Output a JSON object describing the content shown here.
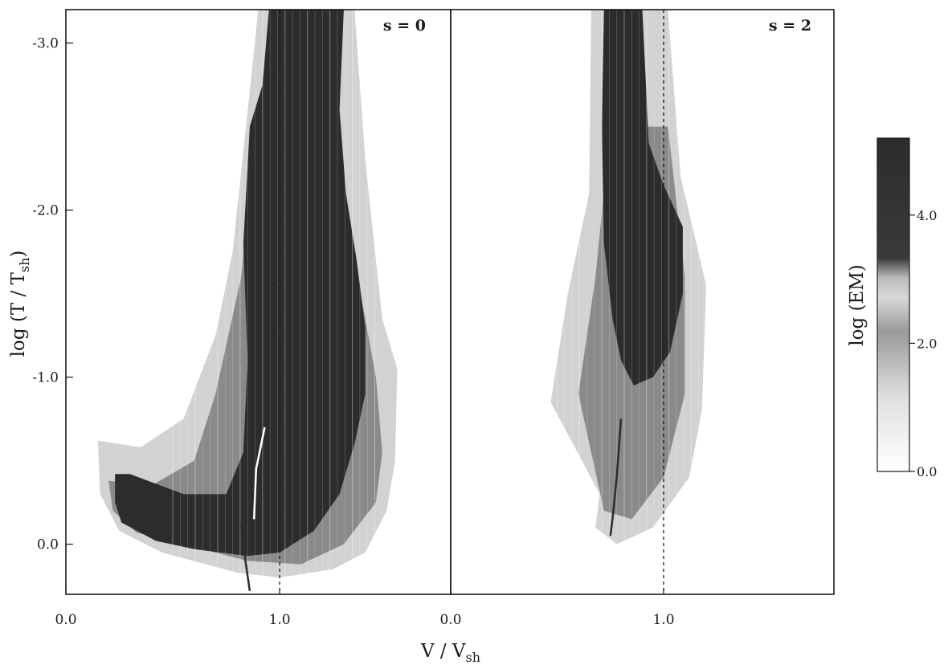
{
  "chart_data": {
    "type": "heatmap",
    "xlabel": "V / V",
    "xlabel_sub": "sh",
    "ylabel": "log (T / T",
    "ylabel_sub": "sh",
    "ylabel_close": ")",
    "panel_xlim": [
      0.0,
      1.8
    ],
    "ylim": [
      0.3,
      -3.2
    ],
    "y_ticks": [
      {
        "value": -3.0,
        "label": "-3.0"
      },
      {
        "value": -2.0,
        "label": "-2.0"
      },
      {
        "value": -1.0,
        "label": "-1.0"
      },
      {
        "value": 0.0,
        "label": "0.0"
      }
    ],
    "panels": [
      {
        "label": "s = 0",
        "x_ticks": [
          {
            "value": 0.0,
            "label": "0.0"
          },
          {
            "value": 1.0,
            "label": "1.0"
          }
        ],
        "reference_line_x": 1.0,
        "regions": [
          {
            "level": "light",
            "points": [
              [
                0.15,
                -0.62
              ],
              [
                0.35,
                -0.58
              ],
              [
                0.55,
                -0.75
              ],
              [
                0.7,
                -1.25
              ],
              [
                0.78,
                -1.75
              ],
              [
                0.9,
                -3.2
              ],
              [
                1.35,
                -3.2
              ],
              [
                1.4,
                -2.3
              ],
              [
                1.48,
                -1.35
              ],
              [
                1.55,
                -1.05
              ],
              [
                1.54,
                -0.5
              ],
              [
                1.5,
                -0.2
              ],
              [
                1.4,
                0.05
              ],
              [
                1.25,
                0.15
              ],
              [
                1.0,
                0.2
              ],
              [
                0.8,
                0.17
              ],
              [
                0.45,
                0.05
              ],
              [
                0.25,
                -0.08
              ],
              [
                0.16,
                -0.3
              ]
            ]
          },
          {
            "level": "medium",
            "points": [
              [
                0.2,
                -0.38
              ],
              [
                0.4,
                -0.35
              ],
              [
                0.6,
                -0.5
              ],
              [
                0.7,
                -0.9
              ],
              [
                0.82,
                -1.6
              ],
              [
                0.9,
                -2.6
              ],
              [
                1.2,
                -2.6
              ],
              [
                1.35,
                -1.7
              ],
              [
                1.45,
                -1.0
              ],
              [
                1.48,
                -0.55
              ],
              [
                1.45,
                -0.25
              ],
              [
                1.3,
                0.0
              ],
              [
                1.1,
                0.12
              ],
              [
                0.85,
                0.1
              ],
              [
                0.55,
                0.0
              ],
              [
                0.33,
                -0.07
              ],
              [
                0.22,
                -0.2
              ]
            ]
          },
          {
            "level": "dark",
            "points": [
              [
                0.23,
                -0.42
              ],
              [
                0.3,
                -0.42
              ],
              [
                0.55,
                -0.3
              ],
              [
                0.75,
                -0.3
              ],
              [
                0.83,
                -0.55
              ],
              [
                0.85,
                -1.1
              ],
              [
                0.83,
                -1.8
              ],
              [
                0.86,
                -2.5
              ],
              [
                0.92,
                -2.75
              ],
              [
                0.95,
                -3.2
              ],
              [
                1.3,
                -3.2
              ],
              [
                1.28,
                -2.6
              ],
              [
                1.31,
                -2.1
              ],
              [
                1.36,
                -1.7
              ],
              [
                1.4,
                -1.3
              ],
              [
                1.4,
                -0.9
              ],
              [
                1.35,
                -0.6
              ],
              [
                1.28,
                -0.3
              ],
              [
                1.16,
                -0.08
              ],
              [
                1.0,
                0.05
              ],
              [
                0.85,
                0.07
              ],
              [
                0.6,
                0.03
              ],
              [
                0.42,
                -0.02
              ],
              [
                0.26,
                -0.13
              ],
              [
                0.23,
                -0.25
              ]
            ]
          }
        ],
        "streaks": [
          {
            "level": "white",
            "points": [
              [
                0.88,
                -0.15
              ],
              [
                0.89,
                -0.45
              ],
              [
                0.93,
                -0.7
              ]
            ]
          },
          {
            "level": "dark",
            "points": [
              [
                0.82,
                -0.12
              ],
              [
                0.84,
                0.1
              ],
              [
                0.86,
                0.28
              ]
            ]
          }
        ]
      },
      {
        "label": "s = 2",
        "x_ticks": [
          {
            "value": 0.0,
            "label": "0.0"
          },
          {
            "value": 1.0,
            "label": "1.0"
          }
        ],
        "reference_line_x": 1.0,
        "regions": [
          {
            "level": "light",
            "points": [
              [
                0.7,
                -0.3
              ],
              [
                0.47,
                -0.85
              ],
              [
                0.55,
                -1.5
              ],
              [
                0.65,
                -2.1
              ],
              [
                0.66,
                -3.2
              ],
              [
                1.02,
                -3.2
              ],
              [
                1.08,
                -2.2
              ],
              [
                1.2,
                -1.55
              ],
              [
                1.18,
                -0.8
              ],
              [
                1.12,
                -0.4
              ],
              [
                0.95,
                -0.1
              ],
              [
                0.78,
                0.0
              ],
              [
                0.68,
                -0.1
              ]
            ]
          },
          {
            "level": "medium",
            "points": [
              [
                0.72,
                -0.2
              ],
              [
                0.6,
                -0.9
              ],
              [
                0.68,
                -1.6
              ],
              [
                0.75,
                -2.5
              ],
              [
                1.02,
                -2.5
              ],
              [
                1.1,
                -1.6
              ],
              [
                1.1,
                -0.9
              ],
              [
                1.0,
                -0.4
              ],
              [
                0.85,
                -0.15
              ]
            ]
          },
          {
            "level": "dark",
            "points": [
              [
                0.72,
                -3.2
              ],
              [
                0.9,
                -3.2
              ],
              [
                0.93,
                -2.4
              ],
              [
                1.0,
                -2.15
              ],
              [
                1.09,
                -1.9
              ],
              [
                1.09,
                -1.5
              ],
              [
                1.03,
                -1.15
              ],
              [
                0.95,
                -1.0
              ],
              [
                0.86,
                -0.95
              ],
              [
                0.8,
                -1.1
              ],
              [
                0.76,
                -1.35
              ],
              [
                0.72,
                -1.8
              ],
              [
                0.71,
                -2.5
              ]
            ]
          }
        ],
        "streaks": [
          {
            "level": "dark",
            "points": [
              [
                0.8,
                -0.75
              ],
              [
                0.78,
                -0.4
              ],
              [
                0.76,
                -0.15
              ],
              [
                0.75,
                -0.05
              ]
            ]
          }
        ]
      }
    ],
    "colorbar": {
      "label": "log (EM)",
      "range": [
        0.0,
        5.2
      ],
      "ticks": [
        {
          "value": 0.0,
          "label": "0.0"
        },
        {
          "value": 2.0,
          "label": "2.0"
        },
        {
          "value": 4.0,
          "label": "4.0"
        }
      ]
    }
  },
  "colors": {
    "dark": "#2c2c2c",
    "medium": "#8a8a8a",
    "light": "#d2d2d2",
    "white": "#ffffff",
    "ink": "#1a1a1a"
  }
}
